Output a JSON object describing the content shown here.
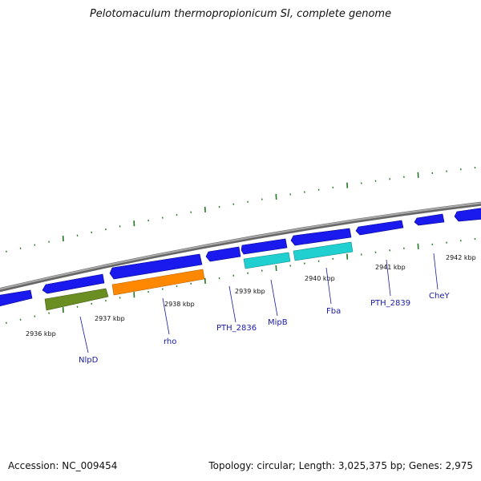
{
  "title": "Pelotomaculum thermopropionicum SI, complete genome",
  "accession": "Accession: NC_009454",
  "summary": "Topology: circular; Length: 3,025,375 bp; Genes: 2,975",
  "colors": {
    "backbone": "#888888",
    "gene_forward": "#1a1aee",
    "gene_reverse_green": "#6b8e23",
    "gene_reverse_orange": "#ff8800",
    "gene_reverse_cyan": "#20d0d0",
    "tick": "#227722",
    "label": "#1a1aa6"
  },
  "kbp_labels": [
    "2936 kbp",
    "2937 kbp",
    "2938 kbp",
    "2939 kbp",
    "2940 kbp",
    "2941 kbp",
    "2942 kbp"
  ],
  "gene_labels": [
    "NlpD",
    "rho",
    "PTH_2836",
    "MipB",
    "Fba",
    "PTH_2839",
    "CheY"
  ]
}
